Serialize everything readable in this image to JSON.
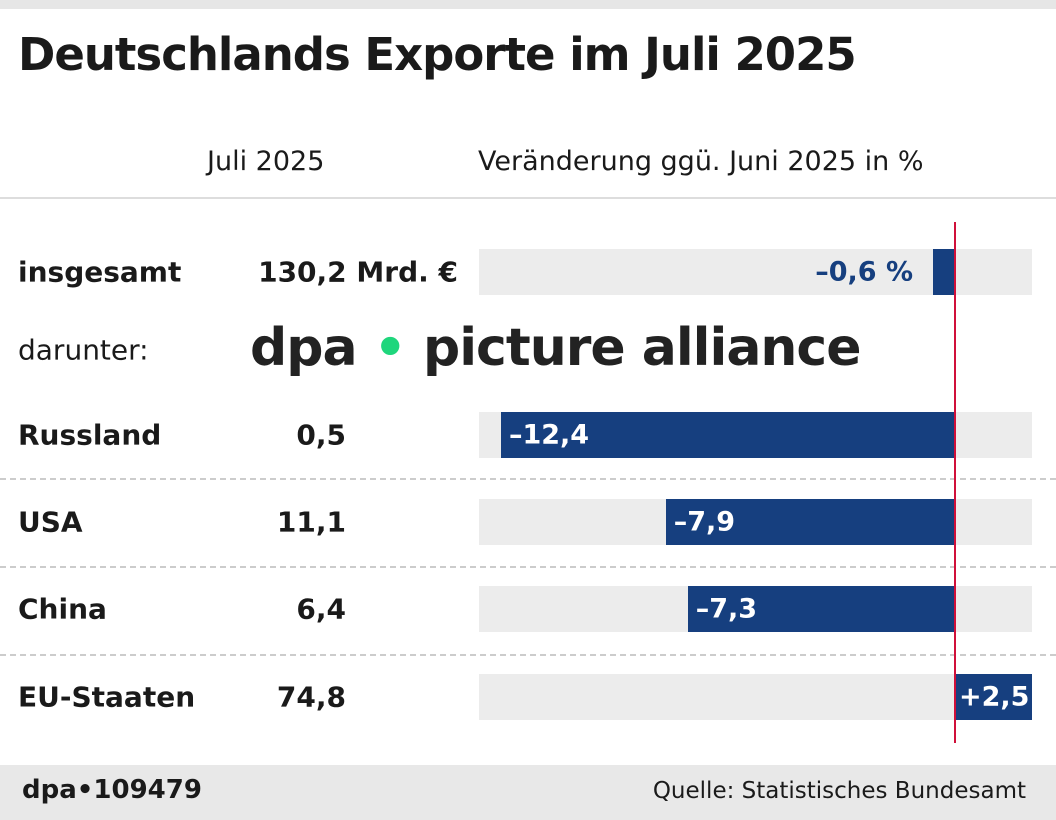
{
  "title": "Deutschlands Exporte im Juli 2025",
  "headers": {
    "value": "Juli 2025",
    "change": "Veränderung ggü. Juni 2025 in %"
  },
  "subheading": "darunter:",
  "footer": {
    "id": "dpa•109479",
    "source": "Quelle: Statistisches Bundesamt"
  },
  "watermark": "dpa • picture alliance",
  "colors": {
    "bar": "#163f7f",
    "zero_line": "#d0103a",
    "track": "#ececec"
  },
  "chart_data": {
    "type": "bar",
    "orientation": "horizontal",
    "categories": [
      "insgesamt",
      "Russland",
      "USA",
      "China",
      "EU-Staaten"
    ],
    "values_label": [
      "130,2 Mrd. €",
      "0,5",
      "11,1",
      "6,4",
      "74,8"
    ],
    "values": [
      -0.6,
      -12.4,
      -7.9,
      -7.3,
      2.5
    ],
    "value_labels": [
      "–0,6 %",
      "–12,4",
      "–7,9",
      "–7,3",
      "+2,5"
    ],
    "xlim": [
      -13,
      2.1
    ]
  }
}
